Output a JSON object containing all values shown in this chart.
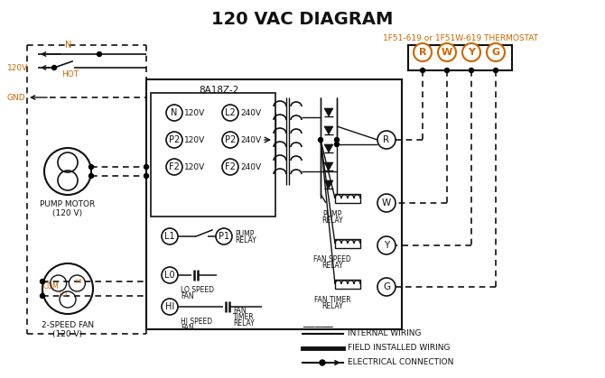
{
  "title": "120 VAC DIAGRAM",
  "title_fontsize": 14,
  "title_color": "#111111",
  "thermostat_label": "1F51-619 or 1F51W-619 THERMOSTAT",
  "box_label": "8A18Z-2",
  "thermostat_terminals": [
    "R",
    "W",
    "Y",
    "G"
  ],
  "bg_color": "#ffffff",
  "line_color": "#111111",
  "orange_color": "#cc6600",
  "legend_items": [
    "INTERNAL WIRING",
    "FIELD INSTALLED WIRING",
    "ELECTRICAL CONNECTION"
  ],
  "figw": 6.7,
  "figh": 4.19,
  "dpi": 100
}
